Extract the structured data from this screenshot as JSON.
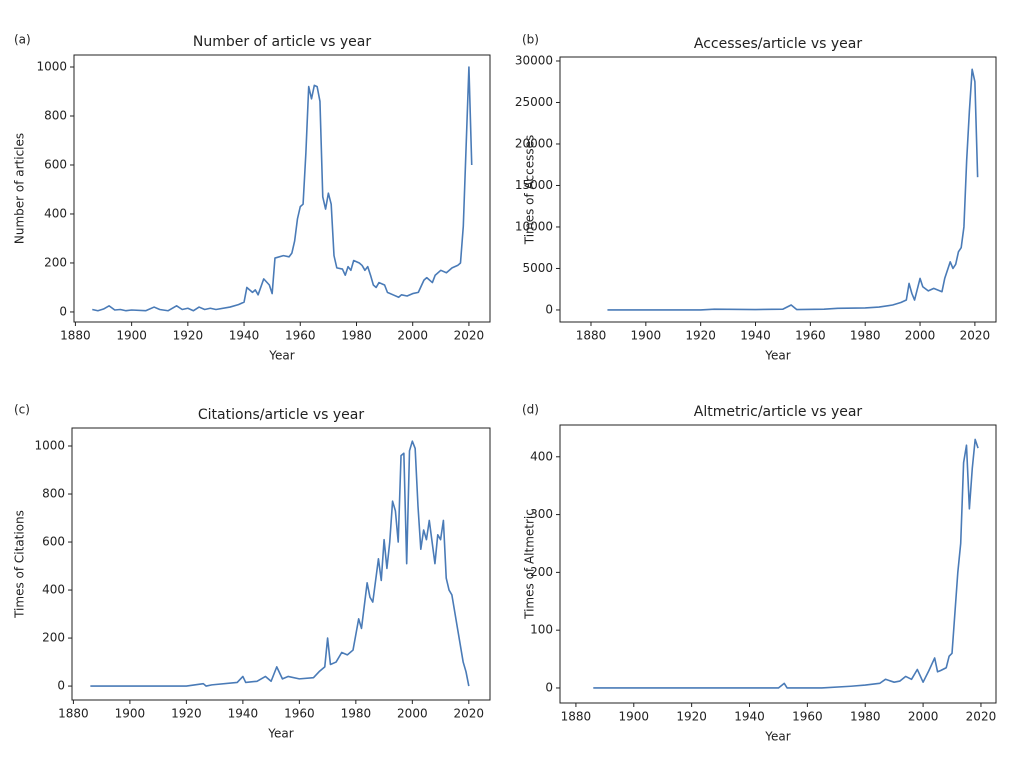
{
  "chart_data": [
    {
      "type": "line",
      "panel_label": "(a)",
      "title": "Number of article vs year",
      "xlabel": "Year",
      "ylabel": "Number of articles",
      "color": "#4a7bb7",
      "xlim": [
        1879.5,
        2027.5
      ],
      "ylim": [
        -41,
        1049
      ],
      "xticks": [
        1880,
        1900,
        1920,
        1940,
        1960,
        1980,
        2000,
        2020
      ],
      "yticks": [
        0,
        200,
        400,
        600,
        800,
        1000
      ],
      "x": [
        1886,
        1888,
        1890,
        1892,
        1894,
        1896,
        1898,
        1900,
        1905,
        1908,
        1910,
        1913,
        1916,
        1918,
        1920,
        1922,
        1924,
        1926,
        1928,
        1930,
        1935,
        1938,
        1940,
        1941,
        1943,
        1944,
        1945,
        1947,
        1949,
        1950,
        1951,
        1954,
        1956,
        1957,
        1958,
        1959,
        1960,
        1961,
        1962,
        1963,
        1964,
        1965,
        1966,
        1967,
        1968,
        1969,
        1970,
        1971,
        1972,
        1973,
        1975,
        1976,
        1977,
        1978,
        1979,
        1981,
        1982,
        1983,
        1984,
        1985,
        1986,
        1987,
        1988,
        1990,
        1991,
        1993,
        1995,
        1996,
        1998,
        2000,
        2002,
        2004,
        2005,
        2007,
        2008,
        2010,
        2012,
        2014,
        2016,
        2017,
        2018,
        2020,
        2021
      ],
      "values": [
        10,
        5,
        12,
        25,
        8,
        10,
        5,
        8,
        5,
        20,
        10,
        5,
        25,
        10,
        15,
        5,
        20,
        10,
        15,
        10,
        20,
        30,
        40,
        100,
        80,
        90,
        70,
        135,
        110,
        75,
        220,
        230,
        225,
        240,
        290,
        380,
        430,
        440,
        650,
        920,
        870,
        925,
        920,
        860,
        470,
        420,
        485,
        440,
        230,
        180,
        175,
        150,
        185,
        170,
        210,
        200,
        190,
        170,
        185,
        150,
        110,
        100,
        120,
        110,
        80,
        70,
        60,
        70,
        65,
        75,
        80,
        130,
        140,
        120,
        150,
        170,
        160,
        180,
        190,
        200,
        350,
        1000,
        600
      ]
    },
    {
      "type": "line",
      "panel_label": "(b)",
      "title": "Accesses/article vs year",
      "xlabel": "Year",
      "ylabel": "Times of Accesses",
      "color": "#4a7bb7",
      "xlim": [
        1868.7,
        2027.7
      ],
      "ylim": [
        -1450,
        30480
      ],
      "xticks": [
        1880,
        1900,
        1920,
        1940,
        1960,
        1980,
        2000,
        2020
      ],
      "yticks": [
        0,
        5000,
        10000,
        15000,
        20000,
        25000,
        30000
      ],
      "x": [
        1886,
        1900,
        1920,
        1925,
        1940,
        1950,
        1953,
        1955,
        1965,
        1970,
        1980,
        1985,
        1990,
        1993,
        1995,
        1996,
        1997,
        1998,
        2000,
        2001,
        2003,
        2005,
        2008,
        2009,
        2011,
        2012,
        2013,
        2014,
        2015,
        2016,
        2017,
        2018,
        2019,
        2020,
        2021
      ],
      "values": [
        0,
        0,
        0,
        100,
        50,
        100,
        600,
        50,
        100,
        200,
        250,
        350,
        600,
        900,
        1200,
        3200,
        2000,
        1200,
        3800,
        2800,
        2300,
        2600,
        2200,
        3800,
        5800,
        5000,
        5500,
        7000,
        7500,
        10000,
        18000,
        24000,
        29000,
        27500,
        16000
      ]
    },
    {
      "type": "line",
      "panel_label": "(c)",
      "title": "Citations/article vs year",
      "xlabel": "Year",
      "ylabel": "Times of Citations",
      "color": "#4a7bb7",
      "xlim": [
        1879.5,
        2027.5
      ],
      "ylim": [
        -58,
        1075
      ],
      "xticks": [
        1880,
        1900,
        1920,
        1940,
        1960,
        1980,
        2000,
        2020
      ],
      "yticks": [
        0,
        200,
        400,
        600,
        800,
        1000
      ],
      "x": [
        1886,
        1900,
        1920,
        1926,
        1927,
        1929,
        1938,
        1940,
        1941,
        1945,
        1948,
        1950,
        1952,
        1954,
        1956,
        1960,
        1965,
        1967,
        1969,
        1970,
        1971,
        1973,
        1975,
        1977,
        1979,
        1981,
        1982,
        1984,
        1985,
        1986,
        1988,
        1989,
        1990,
        1991,
        1992,
        1993,
        1994,
        1995,
        1996,
        1997,
        1998,
        1999,
        2000,
        2001,
        2002,
        2003,
        2004,
        2005,
        2006,
        2007,
        2008,
        2009,
        2010,
        2011,
        2012,
        2013,
        2014,
        2016,
        2018,
        2019,
        2020
      ],
      "values": [
        0,
        0,
        0,
        10,
        0,
        5,
        15,
        40,
        15,
        20,
        40,
        20,
        80,
        30,
        40,
        30,
        35,
        60,
        80,
        200,
        90,
        100,
        140,
        130,
        150,
        280,
        240,
        430,
        370,
        350,
        530,
        440,
        610,
        490,
        600,
        770,
        730,
        600,
        960,
        970,
        510,
        980,
        1020,
        990,
        750,
        570,
        650,
        610,
        690,
        600,
        510,
        630,
        610,
        690,
        450,
        400,
        380,
        240,
        100,
        60,
        0
      ]
    },
    {
      "type": "line",
      "panel_label": "(d)",
      "title": "Altmetric/article vs year",
      "xlabel": "Year",
      "ylabel": "Times of Altmetric",
      "color": "#4a7bb7",
      "xlim": [
        1874.5,
        2025.2
      ],
      "ylim": [
        -26,
        455
      ],
      "xticks": [
        1880,
        1900,
        1920,
        1940,
        1960,
        1980,
        2000,
        2020
      ],
      "yticks": [
        0,
        100,
        200,
        300,
        400
      ],
      "x": [
        1886,
        1900,
        1950,
        1952,
        1953,
        1965,
        1975,
        1980,
        1985,
        1987,
        1990,
        1992,
        1994,
        1996,
        1998,
        2000,
        2002,
        2004,
        2005,
        2006,
        2008,
        2009,
        2010,
        2011,
        2012,
        2013,
        2014,
        2015,
        2016,
        2017,
        2018,
        2019
      ],
      "values": [
        0,
        0,
        0,
        8,
        0,
        0,
        3,
        5,
        8,
        15,
        10,
        12,
        20,
        15,
        32,
        10,
        30,
        52,
        28,
        30,
        35,
        55,
        60,
        130,
        200,
        250,
        390,
        420,
        310,
        380,
        430,
        415
      ]
    }
  ]
}
